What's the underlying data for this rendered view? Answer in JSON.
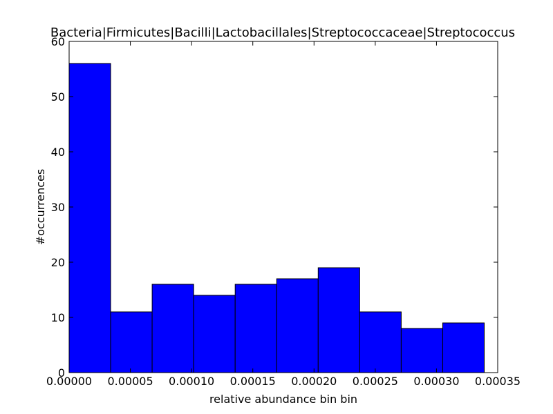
{
  "chart_data": {
    "type": "bar",
    "title": "Bacteria|Firmicutes|Bacilli|Lactobacillales|Streptococcaceae|Streptococcus",
    "xlabel": "relative abundance bin bin",
    "ylabel": "#occurrences",
    "xlim": [
      0,
      0.00035
    ],
    "ylim": [
      0,
      60
    ],
    "bin_edges": [
      0,
      3.39e-05,
      6.78e-05,
      0.0001017,
      0.0001356,
      0.0001695,
      0.0002034,
      0.0002373,
      0.0002712,
      0.0003051,
      0.000339
    ],
    "values": [
      56,
      11,
      16,
      14,
      16,
      17,
      19,
      11,
      8,
      9
    ],
    "x_ticks": [
      0,
      5e-05,
      0.0001,
      0.00015,
      0.0002,
      0.00025,
      0.0003,
      0.00035
    ],
    "x_tick_labels": [
      "0.00000",
      "0.00005",
      "0.00010",
      "0.00015",
      "0.00020",
      "0.00025",
      "0.00030",
      "0.00035"
    ],
    "y_ticks": [
      0,
      10,
      20,
      30,
      40,
      50,
      60
    ],
    "y_tick_labels": [
      "0",
      "10",
      "20",
      "30",
      "40",
      "50",
      "60"
    ],
    "bar_color": "#0000ff",
    "edge_color": "#000000",
    "grid": false,
    "legend": "none"
  }
}
